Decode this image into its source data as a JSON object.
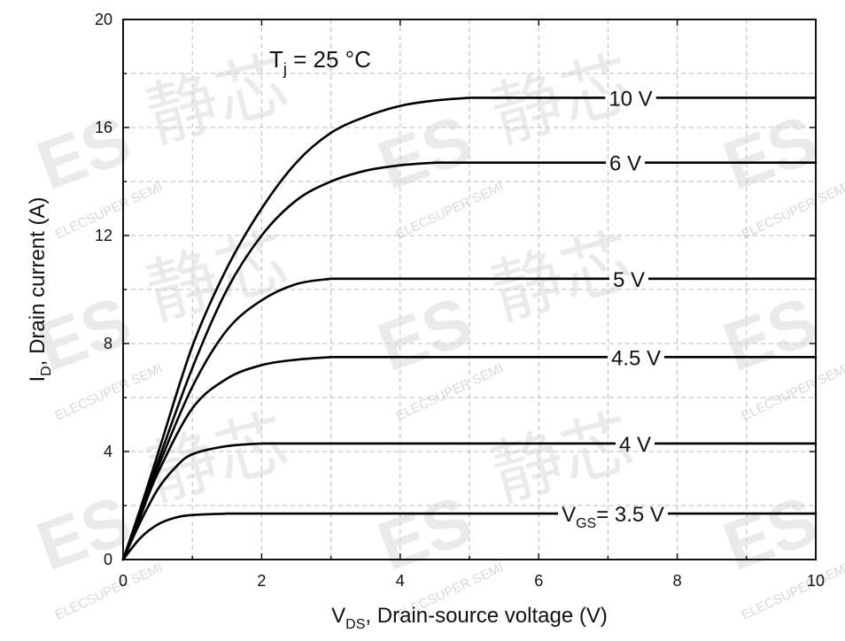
{
  "chart_data": {
    "type": "line",
    "annotation": {
      "main": "T",
      "sub": "j",
      "rest": " = 25 °C"
    },
    "xlabel": {
      "main": "V",
      "sub": "DS",
      "rest": ", Drain-source voltage (V)"
    },
    "ylabel": {
      "main": "I",
      "sub": "D",
      "rest": ", Drain current (A)"
    },
    "xlim": [
      0,
      10
    ],
    "ylim": [
      0,
      20
    ],
    "xticks": [
      "0",
      "2",
      "4",
      "6",
      "8",
      "10"
    ],
    "yticks": [
      "0",
      "4",
      "8",
      "12",
      "16",
      "20"
    ],
    "grid": true,
    "series": [
      {
        "name": "10 V",
        "x": [
          0,
          0.25,
          0.5,
          1,
          1.5,
          2,
          2.5,
          3,
          3.5,
          4,
          4.5,
          5,
          10
        ],
        "y": [
          0,
          1.9,
          3.9,
          7.9,
          10.8,
          13.0,
          14.7,
          15.8,
          16.4,
          16.8,
          17.0,
          17.1,
          17.1
        ]
      },
      {
        "name": "6 V",
        "x": [
          0,
          0.25,
          0.5,
          1,
          1.5,
          2,
          2.5,
          3,
          3.5,
          4,
          4.5,
          10
        ],
        "y": [
          0,
          1.8,
          3.6,
          7.1,
          10.0,
          12.0,
          13.3,
          14.0,
          14.4,
          14.6,
          14.7,
          14.7
        ]
      },
      {
        "name": "5 V",
        "x": [
          0,
          0.25,
          0.5,
          1,
          1.5,
          2,
          2.5,
          3,
          10
        ],
        "y": [
          0,
          1.7,
          3.4,
          6.4,
          8.5,
          9.6,
          10.2,
          10.4,
          10.4
        ]
      },
      {
        "name": "4.5 V",
        "x": [
          0,
          0.25,
          0.5,
          1,
          1.5,
          2,
          2.5,
          3,
          10
        ],
        "y": [
          0,
          1.6,
          3.2,
          5.6,
          6.7,
          7.2,
          7.4,
          7.5,
          7.5
        ]
      },
      {
        "name": "4 V",
        "x": [
          0,
          0.25,
          0.5,
          0.75,
          1,
          1.5,
          2,
          10
        ],
        "y": [
          0,
          1.4,
          2.6,
          3.4,
          3.9,
          4.2,
          4.3,
          4.3
        ]
      },
      {
        "name_main": "V",
        "name_sub": "GS",
        "name": "= 3.5 V",
        "x": [
          0,
          0.25,
          0.5,
          0.75,
          1,
          1.5,
          10
        ],
        "y": [
          0,
          0.8,
          1.3,
          1.55,
          1.65,
          1.7,
          1.7
        ]
      }
    ]
  },
  "watermark": {
    "logo": "ES",
    "text": "ELECSUPER SEMI",
    "cjk": "静芯"
  }
}
